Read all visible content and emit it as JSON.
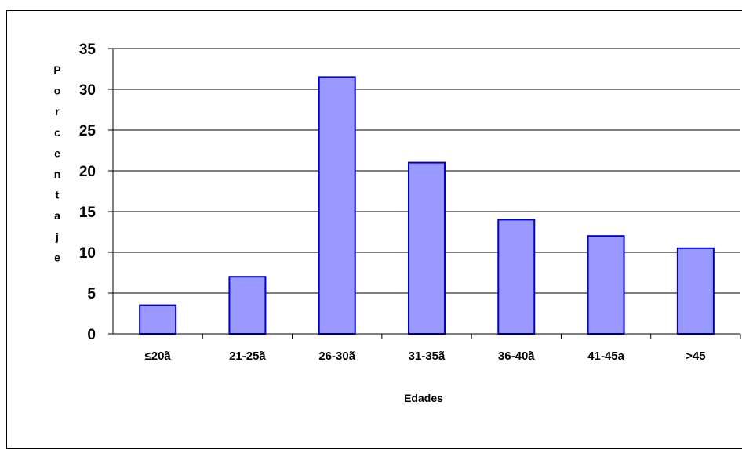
{
  "chart_data": {
    "type": "bar",
    "title": "",
    "xlabel": "Edades",
    "ylabel": "Porcentaje",
    "ylabel_letters": [
      "P",
      "o",
      "r",
      "c",
      "e",
      "n",
      "t",
      "a",
      "j",
      "e"
    ],
    "categories": [
      "≤20ã",
      "21-25ã",
      "26-30ã",
      "31-35ã",
      "36-40ã",
      "41-45a",
      ">45"
    ],
    "values": [
      3.5,
      7,
      31.5,
      21,
      14,
      12,
      10.5
    ],
    "ylim": [
      0,
      35
    ],
    "yticks": [
      0,
      5,
      10,
      15,
      20,
      25,
      30,
      35
    ],
    "grid": true,
    "legend": "none",
    "bar_color": "#9999ff",
    "bar_border": "#0000cc"
  }
}
